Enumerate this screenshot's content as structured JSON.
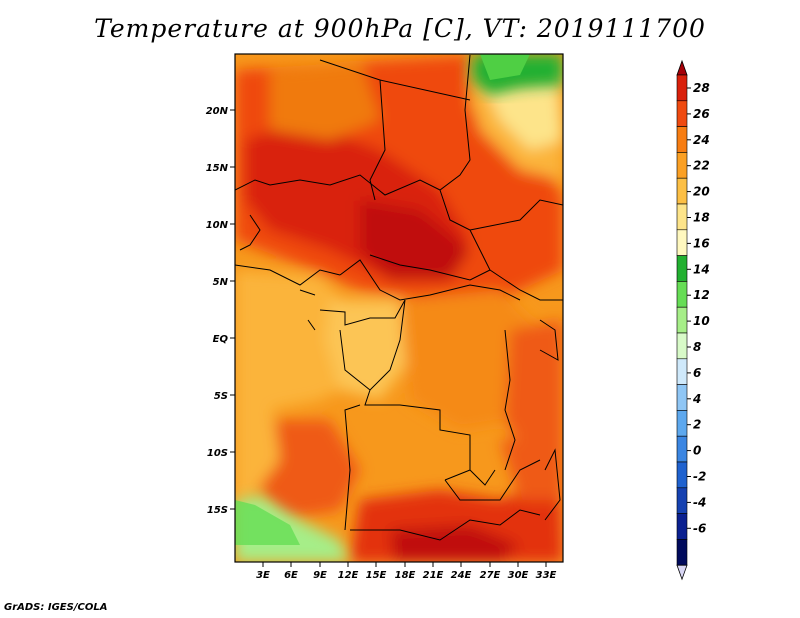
{
  "title": "Temperature at 900hPa [C], VT: 2019111700",
  "credit": "GrADS: IGES/COLA",
  "map": {
    "y_ticks": [
      "20N",
      "15N",
      "10N",
      "5N",
      "EQ",
      "5S",
      "10S",
      "15S"
    ],
    "x_ticks": [
      "3E",
      "6E",
      "9E",
      "12E",
      "15E",
      "18E",
      "21E",
      "24E",
      "27E",
      "30E",
      "33E"
    ]
  },
  "colorbar": {
    "labels": [
      "28",
      "26",
      "24",
      "22",
      "20",
      "18",
      "16",
      "14",
      "12",
      "10",
      "8",
      "6",
      "4",
      "2",
      "0",
      "-2",
      "-4",
      "-6"
    ],
    "colors": [
      "#a50008",
      "#d9200b",
      "#ef4a10",
      "#f77d12",
      "#fba024",
      "#fcbf45",
      "#fde48a",
      "#fff8bf",
      "#22b030",
      "#66dd55",
      "#a6ee88",
      "#d8fac8",
      "#cfe9fb",
      "#8fc6f5",
      "#5da8ee",
      "#3b86e2",
      "#1f62cf",
      "#1541b1",
      "#0a2090",
      "#000a5c",
      "#d8d6f4"
    ]
  }
}
